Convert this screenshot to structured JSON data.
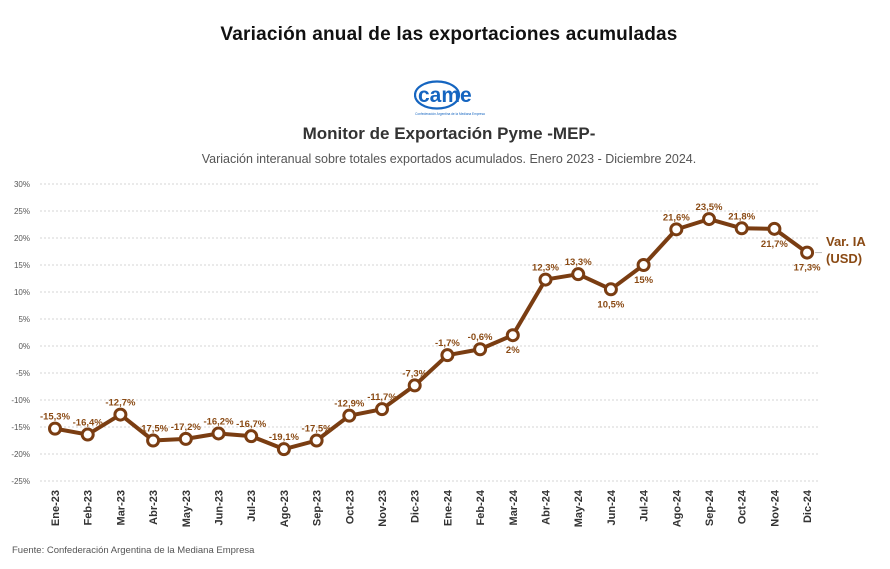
{
  "page": {
    "title": "Variación anual de las exportaciones acumuladas",
    "source": "Fuente: Confederación Argentina de la Mediana Empresa"
  },
  "logo": {
    "text": "came",
    "tagline": "Confederación Argentina de la Mediana Empresa"
  },
  "colors": {
    "line": "#7a3d12",
    "label": "#8a4a14",
    "grid": "#d6d6d6",
    "logo_blue": "#1565c0",
    "end_label": "#8a4a14"
  },
  "chart_data": {
    "type": "line",
    "title": "Monitor de Exportación Pyme -MEP-",
    "subtitle": "Variación interanual sobre totales exportados acumulados. Enero 2023 - Diciembre 2024.",
    "categories": [
      "Ene-23",
      "Feb-23",
      "Mar-23",
      "Abr-23",
      "May-23",
      "Jun-23",
      "Jul-23",
      "Ago-23",
      "Sep-23",
      "Oct-23",
      "Nov-23",
      "Dic-23",
      "Ene-24",
      "Feb-24",
      "Mar-24",
      "Abr-24",
      "May-24",
      "Jun-24",
      "Jul-24",
      "Ago-24",
      "Sep-24",
      "Oct-24",
      "Nov-24",
      "Dic-24"
    ],
    "series": [
      {
        "name": "Var. IA (USD)",
        "values": [
          -15.3,
          -16.4,
          -12.7,
          -17.5,
          -17.2,
          -16.2,
          -16.7,
          -19.1,
          -17.5,
          -12.9,
          -11.7,
          -7.3,
          -1.7,
          -0.6,
          2,
          12.3,
          13.3,
          10.5,
          15,
          21.6,
          23.5,
          21.8,
          21.7,
          17.3
        ],
        "labels": [
          "-15,3%",
          "-16,4%",
          "-12,7%",
          "-17,5%",
          "-17,2%",
          "-16,2%",
          "-16,7%",
          "-19,1%",
          "-17,5%",
          "-12,9%",
          "-11,7%",
          "-7,3%",
          "-1,7%",
          "-0,6%",
          "2%",
          "12,3%",
          "13,3%",
          "10,5%",
          "15%",
          "21,6%",
          "23,5%",
          "21,8%",
          "21,7%",
          "17,3%"
        ]
      }
    ],
    "end_label_lines": [
      "Var. IA",
      "(USD)"
    ],
    "ylim": [
      -25,
      30
    ],
    "yticks": [
      -25,
      -20,
      -15,
      -10,
      -5,
      0,
      5,
      10,
      15,
      20,
      25,
      30
    ],
    "ytick_labels": [
      "-25%",
      "-20%",
      "-15%",
      "-10%",
      "-5%",
      "0%",
      "5%",
      "10%",
      "15%",
      "20%",
      "25%",
      "30%"
    ],
    "grid": true,
    "legend": "none"
  }
}
